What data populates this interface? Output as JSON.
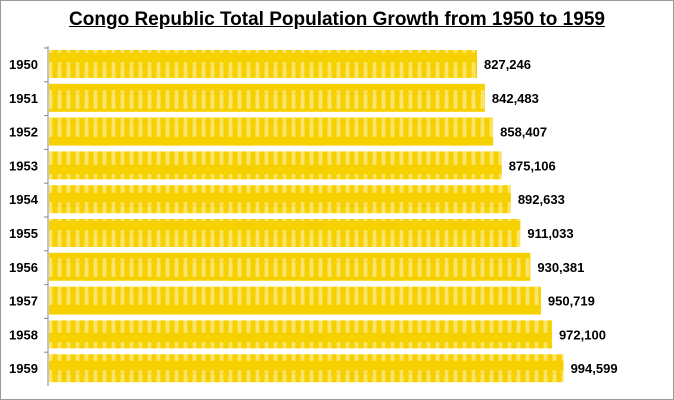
{
  "chart_data": {
    "type": "bar",
    "orientation": "horizontal",
    "title": "Congo Republic Total Population Growth from 1950 to 1959",
    "xlabel": "",
    "ylabel": "",
    "categories": [
      "1950",
      "1951",
      "1952",
      "1953",
      "1954",
      "1955",
      "1956",
      "1957",
      "1958",
      "1959"
    ],
    "values": [
      827246,
      842483,
      858407,
      875106,
      892633,
      911033,
      930381,
      950719,
      972100,
      994599
    ],
    "data_labels": [
      "827,246",
      "842,483",
      "858,407",
      "875,106",
      "892,633",
      "911,033",
      "930,381",
      "950,719",
      "972,100",
      "994,599"
    ],
    "xlim": [
      0,
      1200000
    ],
    "grid": false,
    "legend": "none",
    "colors": {
      "bar": "#f7d000",
      "bar_figures": "#fbe46a",
      "axis": "#888888"
    }
  }
}
